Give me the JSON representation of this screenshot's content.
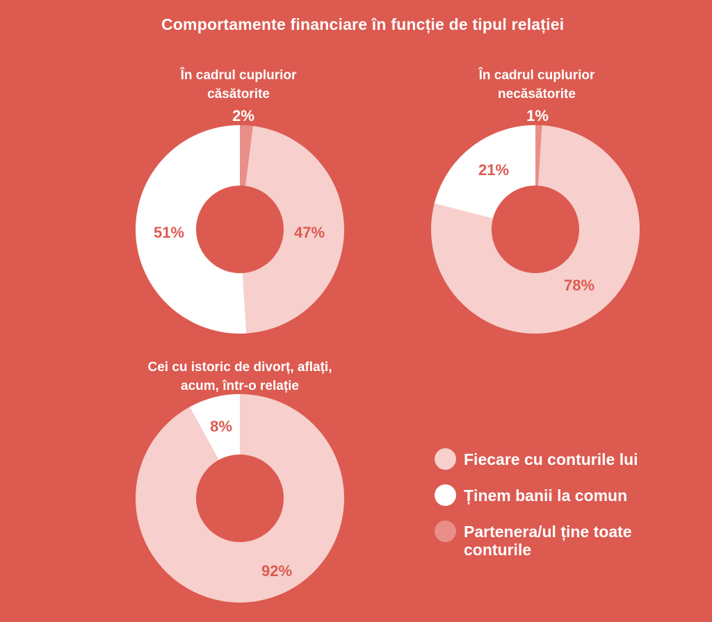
{
  "title": "Comportamente financiare în funcție de tipul relației",
  "colors": {
    "background": "#dc5a50",
    "fiecare": "#f7cfcc",
    "comun": "#ffffff",
    "partenera": "#e98e88",
    "label_on_light": "#dc5a50",
    "label_on_bg": "#ffffff"
  },
  "legend": [
    {
      "label": "Fiecare cu conturile lui",
      "color": "#f7cfcc"
    },
    {
      "label": "Ținem banii la comun",
      "color": "#ffffff"
    },
    {
      "label": "Partenera/ul ține toate conturile",
      "color": "#e98e88"
    }
  ],
  "chart_data": [
    {
      "type": "pie",
      "title": "În cadrul cuplurior căsătorite",
      "categories": [
        "Fiecare cu conturile lui",
        "Ținem banii la comun",
        "Partenera/ul ține toate conturile"
      ],
      "values": [
        47,
        51,
        2
      ],
      "labels": [
        "47%",
        "51%",
        "2%"
      ]
    },
    {
      "type": "pie",
      "title": "În cadrul cuplurior necăsătorite",
      "categories": [
        "Fiecare cu conturile lui",
        "Ținem banii la comun",
        "Partenera/ul ține toate conturile"
      ],
      "values": [
        78,
        21,
        1
      ],
      "labels": [
        "78%",
        "21%",
        "1%"
      ]
    },
    {
      "type": "pie",
      "title": "Cei cu istoric de divorț, aflați, acum, într-o relație",
      "categories": [
        "Fiecare cu conturile lui",
        "Ținem banii la comun"
      ],
      "values": [
        92,
        8
      ],
      "labels": [
        "92%",
        "8%"
      ]
    }
  ]
}
